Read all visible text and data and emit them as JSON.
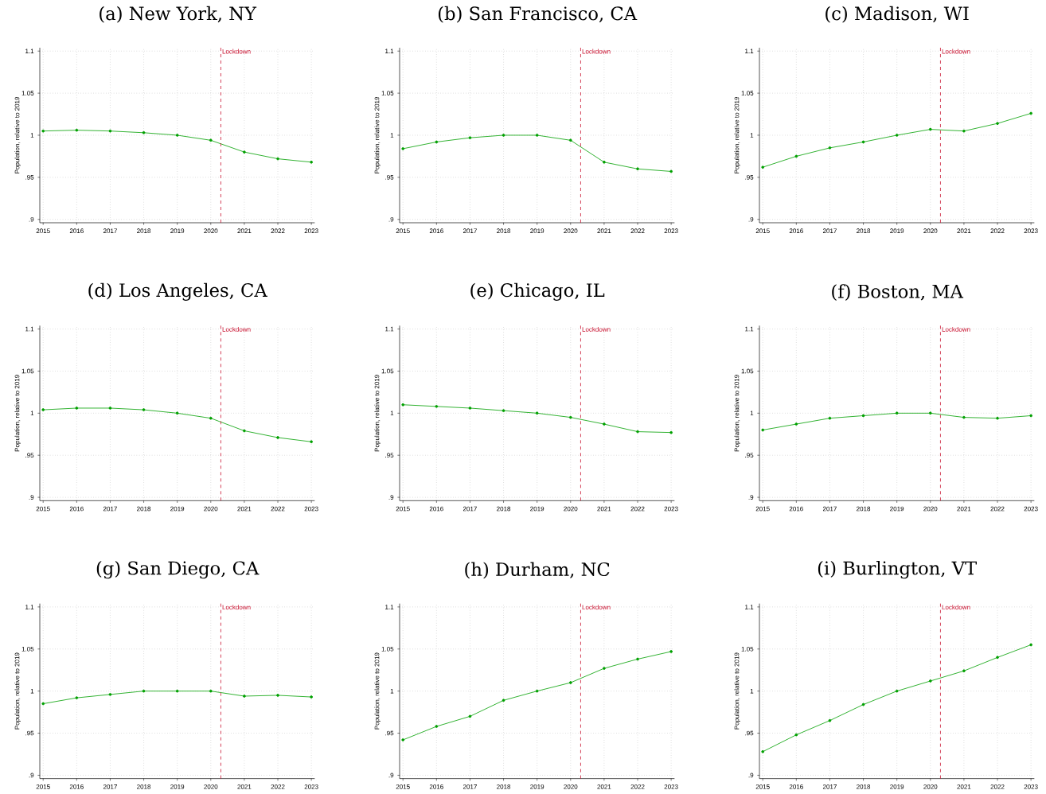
{
  "chart_data": [
    {
      "type": "line",
      "title": "(a) New York, NY",
      "ylabel": "Population, relative to 2019",
      "x": [
        2015,
        2016,
        2017,
        2018,
        2019,
        2020,
        2021,
        2022,
        2023
      ],
      "series": [
        {
          "color": "#00a000",
          "values": [
            1.005,
            1.006,
            1.005,
            1.003,
            1.0,
            0.994,
            0.98,
            0.972,
            0.968
          ]
        }
      ],
      "marker": "circle",
      "line_style": "solid",
      "grid": true,
      "xlim": [
        2014.9,
        2023.1
      ],
      "ylim": [
        0.896,
        1.104
      ],
      "xticks": [
        2015,
        2016,
        2017,
        2018,
        2019,
        2020,
        2021,
        2022,
        2023
      ],
      "yticks": [
        {
          "value": 0.9,
          "label": ".9"
        },
        {
          "value": 0.95,
          "label": ".95"
        },
        {
          "value": 1,
          "label": "1"
        },
        {
          "value": 1.05,
          "label": "1.05"
        },
        {
          "value": 1.1,
          "label": "1.1"
        }
      ],
      "ref_lines": [
        {
          "axis": "x",
          "value": 2020.3,
          "label": "Lockdown",
          "color": "#c8102e",
          "line_style": "dashed"
        }
      ]
    },
    {
      "type": "line",
      "title": "(b) San Francisco, CA",
      "ylabel": "Population, relative to 2019",
      "x": [
        2015,
        2016,
        2017,
        2018,
        2019,
        2020,
        2021,
        2022,
        2023
      ],
      "series": [
        {
          "color": "#00a000",
          "values": [
            0.984,
            0.992,
            0.997,
            1.0,
            1.0,
            0.994,
            0.968,
            0.96,
            0.957
          ]
        }
      ],
      "marker": "circle",
      "line_style": "solid",
      "grid": true,
      "xlim": [
        2014.9,
        2023.1
      ],
      "ylim": [
        0.896,
        1.104
      ],
      "xticks": [
        2015,
        2016,
        2017,
        2018,
        2019,
        2020,
        2021,
        2022,
        2023
      ],
      "yticks": [
        {
          "value": 0.9,
          "label": ".9"
        },
        {
          "value": 0.95,
          "label": ".95"
        },
        {
          "value": 1,
          "label": "1"
        },
        {
          "value": 1.05,
          "label": "1.05"
        },
        {
          "value": 1.1,
          "label": "1.1"
        }
      ],
      "ref_lines": [
        {
          "axis": "x",
          "value": 2020.3,
          "label": "Lockdown",
          "color": "#c8102e",
          "line_style": "dashed"
        }
      ]
    },
    {
      "type": "line",
      "title": "(c) Madison, WI",
      "ylabel": "Population, relative to 2019",
      "x": [
        2015,
        2016,
        2017,
        2018,
        2019,
        2020,
        2021,
        2022,
        2023
      ],
      "series": [
        {
          "color": "#00a000",
          "values": [
            0.962,
            0.975,
            0.985,
            0.992,
            1.0,
            1.007,
            1.005,
            1.014,
            1.026
          ]
        }
      ],
      "marker": "circle",
      "line_style": "solid",
      "grid": true,
      "xlim": [
        2014.9,
        2023.1
      ],
      "ylim": [
        0.896,
        1.104
      ],
      "xticks": [
        2015,
        2016,
        2017,
        2018,
        2019,
        2020,
        2021,
        2022,
        2023
      ],
      "yticks": [
        {
          "value": 0.9,
          "label": ".9"
        },
        {
          "value": 0.95,
          "label": ".95"
        },
        {
          "value": 1,
          "label": "1"
        },
        {
          "value": 1.05,
          "label": "1.05"
        },
        {
          "value": 1.1,
          "label": "1.1"
        }
      ],
      "ref_lines": [
        {
          "axis": "x",
          "value": 2020.3,
          "label": "Lockdown",
          "color": "#c8102e",
          "line_style": "dashed"
        }
      ]
    },
    {
      "type": "line",
      "title": "(d) Los Angeles, CA",
      "ylabel": "Population, relative to 2019",
      "x": [
        2015,
        2016,
        2017,
        2018,
        2019,
        2020,
        2021,
        2022,
        2023
      ],
      "series": [
        {
          "color": "#00a000",
          "values": [
            1.004,
            1.006,
            1.006,
            1.004,
            1.0,
            0.994,
            0.979,
            0.971,
            0.966
          ]
        }
      ],
      "marker": "circle",
      "line_style": "solid",
      "grid": true,
      "xlim": [
        2014.9,
        2023.1
      ],
      "ylim": [
        0.896,
        1.104
      ],
      "xticks": [
        2015,
        2016,
        2017,
        2018,
        2019,
        2020,
        2021,
        2022,
        2023
      ],
      "yticks": [
        {
          "value": 0.9,
          "label": ".9"
        },
        {
          "value": 0.95,
          "label": ".95"
        },
        {
          "value": 1,
          "label": "1"
        },
        {
          "value": 1.05,
          "label": "1.05"
        },
        {
          "value": 1.1,
          "label": "1.1"
        }
      ],
      "ref_lines": [
        {
          "axis": "x",
          "value": 2020.3,
          "label": "Lockdown",
          "color": "#c8102e",
          "line_style": "dashed"
        }
      ]
    },
    {
      "type": "line",
      "title": "(e) Chicago, IL",
      "ylabel": "Population, relative to 2019",
      "x": [
        2015,
        2016,
        2017,
        2018,
        2019,
        2020,
        2021,
        2022,
        2023
      ],
      "series": [
        {
          "color": "#00a000",
          "values": [
            1.01,
            1.008,
            1.006,
            1.003,
            1.0,
            0.995,
            0.987,
            0.978,
            0.977
          ]
        }
      ],
      "marker": "circle",
      "line_style": "solid",
      "grid": true,
      "xlim": [
        2014.9,
        2023.1
      ],
      "ylim": [
        0.896,
        1.104
      ],
      "xticks": [
        2015,
        2016,
        2017,
        2018,
        2019,
        2020,
        2021,
        2022,
        2023
      ],
      "yticks": [
        {
          "value": 0.9,
          "label": ".9"
        },
        {
          "value": 0.95,
          "label": ".95"
        },
        {
          "value": 1,
          "label": "1"
        },
        {
          "value": 1.05,
          "label": "1.05"
        },
        {
          "value": 1.1,
          "label": "1.1"
        }
      ],
      "ref_lines": [
        {
          "axis": "x",
          "value": 2020.3,
          "label": "Lockdown",
          "color": "#c8102e",
          "line_style": "dashed"
        }
      ]
    },
    {
      "type": "line",
      "title": "(f) Boston, MA",
      "ylabel": "Population, relative to 2019",
      "x": [
        2015,
        2016,
        2017,
        2018,
        2019,
        2020,
        2021,
        2022,
        2023
      ],
      "series": [
        {
          "color": "#00a000",
          "values": [
            0.98,
            0.987,
            0.994,
            0.997,
            1.0,
            1.0,
            0.995,
            0.994,
            0.997
          ]
        }
      ],
      "marker": "circle",
      "line_style": "solid",
      "grid": true,
      "xlim": [
        2014.9,
        2023.1
      ],
      "ylim": [
        0.896,
        1.104
      ],
      "xticks": [
        2015,
        2016,
        2017,
        2018,
        2019,
        2020,
        2021,
        2022,
        2023
      ],
      "yticks": [
        {
          "value": 0.9,
          "label": ".9"
        },
        {
          "value": 0.95,
          "label": ".95"
        },
        {
          "value": 1,
          "label": "1"
        },
        {
          "value": 1.05,
          "label": "1.05"
        },
        {
          "value": 1.1,
          "label": "1.1"
        }
      ],
      "ref_lines": [
        {
          "axis": "x",
          "value": 2020.3,
          "label": "Lockdown",
          "color": "#c8102e",
          "line_style": "dashed"
        }
      ]
    },
    {
      "type": "line",
      "title": "(g) San Diego, CA",
      "ylabel": "Population, relative to 2019",
      "x": [
        2015,
        2016,
        2017,
        2018,
        2019,
        2020,
        2021,
        2022,
        2023
      ],
      "series": [
        {
          "color": "#00a000",
          "values": [
            0.985,
            0.992,
            0.996,
            1.0,
            1.0,
            1.0,
            0.994,
            0.995,
            0.993
          ]
        }
      ],
      "marker": "circle",
      "line_style": "solid",
      "grid": true,
      "xlim": [
        2014.9,
        2023.1
      ],
      "ylim": [
        0.896,
        1.104
      ],
      "xticks": [
        2015,
        2016,
        2017,
        2018,
        2019,
        2020,
        2021,
        2022,
        2023
      ],
      "yticks": [
        {
          "value": 0.9,
          "label": ".9"
        },
        {
          "value": 0.95,
          "label": ".95"
        },
        {
          "value": 1,
          "label": "1"
        },
        {
          "value": 1.05,
          "label": "1.05"
        },
        {
          "value": 1.1,
          "label": "1.1"
        }
      ],
      "ref_lines": [
        {
          "axis": "x",
          "value": 2020.3,
          "label": "Lockdown",
          "color": "#c8102e",
          "line_style": "dashed"
        }
      ]
    },
    {
      "type": "line",
      "title": "(h) Durham, NC",
      "ylabel": "Population, relative to 2019",
      "x": [
        2015,
        2016,
        2017,
        2018,
        2019,
        2020,
        2021,
        2022,
        2023
      ],
      "series": [
        {
          "color": "#00a000",
          "values": [
            0.942,
            0.958,
            0.97,
            0.989,
            1.0,
            1.01,
            1.027,
            1.038,
            1.047
          ]
        }
      ],
      "marker": "circle",
      "line_style": "solid",
      "grid": true,
      "xlim": [
        2014.9,
        2023.1
      ],
      "ylim": [
        0.896,
        1.104
      ],
      "xticks": [
        2015,
        2016,
        2017,
        2018,
        2019,
        2020,
        2021,
        2022,
        2023
      ],
      "yticks": [
        {
          "value": 0.9,
          "label": ".9"
        },
        {
          "value": 0.95,
          "label": ".95"
        },
        {
          "value": 1,
          "label": "1"
        },
        {
          "value": 1.05,
          "label": "1.05"
        },
        {
          "value": 1.1,
          "label": "1.1"
        }
      ],
      "ref_lines": [
        {
          "axis": "x",
          "value": 2020.3,
          "label": "Lockdown",
          "color": "#c8102e",
          "line_style": "dashed"
        }
      ]
    },
    {
      "type": "line",
      "title": "(i) Burlington, VT",
      "ylabel": "Population, relative to 2019",
      "x": [
        2015,
        2016,
        2017,
        2018,
        2019,
        2020,
        2021,
        2022,
        2023
      ],
      "series": [
        {
          "color": "#00a000",
          "values": [
            0.928,
            0.948,
            0.965,
            0.984,
            1.0,
            1.012,
            1.024,
            1.04,
            1.055
          ]
        }
      ],
      "marker": "circle",
      "line_style": "solid",
      "grid": true,
      "xlim": [
        2014.9,
        2023.1
      ],
      "ylim": [
        0.896,
        1.104
      ],
      "xticks": [
        2015,
        2016,
        2017,
        2018,
        2019,
        2020,
        2021,
        2022,
        2023
      ],
      "yticks": [
        {
          "value": 0.9,
          "label": ".9"
        },
        {
          "value": 0.95,
          "label": ".95"
        },
        {
          "value": 1,
          "label": "1"
        },
        {
          "value": 1.05,
          "label": "1.05"
        },
        {
          "value": 1.1,
          "label": "1.1"
        }
      ],
      "ref_lines": [
        {
          "axis": "x",
          "value": 2020.3,
          "label": "Lockdown",
          "color": "#c8102e",
          "line_style": "dashed"
        }
      ]
    }
  ]
}
